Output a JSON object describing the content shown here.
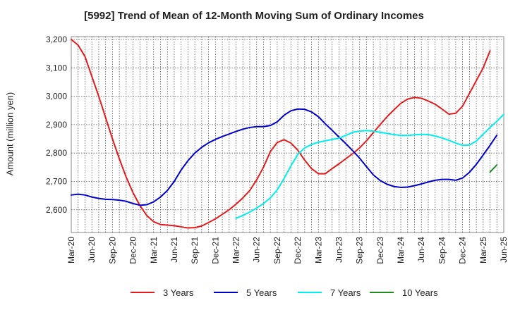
{
  "chart_data": {
    "type": "line",
    "title": "[5992]  Trend of Mean of 12-Month Moving Sum of Ordinary Incomes",
    "xlabel": "",
    "ylabel": "Amount (million yen)",
    "ylim": [
      2520,
      3210
    ],
    "yticks": [
      2600,
      2700,
      2800,
      2900,
      3000,
      3100,
      3200
    ],
    "ytick_labels": [
      "2,600",
      "2,700",
      "2,800",
      "2,900",
      "3,000",
      "3,100",
      "3,200"
    ],
    "xlim": [
      0,
      63
    ],
    "xticks": [
      0,
      3,
      6,
      9,
      12,
      15,
      18,
      21,
      24,
      27,
      30,
      33,
      36,
      39,
      42,
      45,
      48,
      51,
      54,
      57,
      60,
      63
    ],
    "xtick_labels": [
      "Mar-20",
      "Jun-20",
      "Sep-20",
      "Dec-20",
      "Mar-21",
      "Jun-21",
      "Sep-21",
      "Dec-21",
      "Mar-22",
      "Jun-22",
      "Sep-22",
      "Dec-22",
      "Mar-23",
      "Jun-23",
      "Sep-23",
      "Dec-23",
      "Mar-24",
      "Jun-24",
      "Sep-24",
      "Dec-24",
      "Mar-25",
      "Jun-25"
    ],
    "grid": true,
    "legend_position": "bottom",
    "series": [
      {
        "name": "3 Years",
        "color": "#e41a1c",
        "x_start": 0,
        "values": [
          3200,
          3180,
          3140,
          3070,
          3000,
          2925,
          2850,
          2780,
          2715,
          2660,
          2615,
          2580,
          2558,
          2548,
          2546,
          2544,
          2540,
          2536,
          2537,
          2543,
          2555,
          2568,
          2584,
          2600,
          2620,
          2642,
          2668,
          2705,
          2750,
          2805,
          2837,
          2847,
          2835,
          2810,
          2775,
          2745,
          2727,
          2727,
          2745,
          2762,
          2780,
          2798,
          2818,
          2843,
          2872,
          2900,
          2928,
          2952,
          2975,
          2990,
          2996,
          2993,
          2983,
          2972,
          2955,
          2937,
          2940,
          2965,
          3010,
          3055,
          3100,
          3160
        ]
      },
      {
        "name": "5 Years",
        "color": "#0000cd",
        "x_start": 0,
        "values": [
          2652,
          2655,
          2652,
          2645,
          2640,
          2637,
          2636,
          2634,
          2630,
          2622,
          2616,
          2618,
          2628,
          2645,
          2668,
          2700,
          2740,
          2773,
          2800,
          2820,
          2836,
          2848,
          2858,
          2867,
          2876,
          2884,
          2890,
          2893,
          2893,
          2897,
          2910,
          2933,
          2949,
          2955,
          2954,
          2945,
          2928,
          2903,
          2880,
          2856,
          2833,
          2808,
          2782,
          2752,
          2723,
          2703,
          2690,
          2682,
          2679,
          2680,
          2685,
          2691,
          2698,
          2704,
          2707,
          2707,
          2704,
          2712,
          2732,
          2760,
          2793,
          2827,
          2863
        ]
      },
      {
        "name": "7 Years",
        "color": "#00eeee",
        "x_start": 24,
        "values": [
          2570,
          2580,
          2592,
          2606,
          2622,
          2642,
          2670,
          2710,
          2755,
          2795,
          2818,
          2830,
          2838,
          2843,
          2848,
          2852,
          2862,
          2873,
          2877,
          2879,
          2877,
          2873,
          2869,
          2865,
          2862,
          2862,
          2864,
          2866,
          2865,
          2860,
          2853,
          2845,
          2835,
          2827,
          2828,
          2842,
          2866,
          2890,
          2912,
          2936
        ]
      },
      {
        "name": "10 Years",
        "color": "#228b22",
        "x_start": 61,
        "values": [
          2733,
          2758
        ]
      }
    ]
  }
}
